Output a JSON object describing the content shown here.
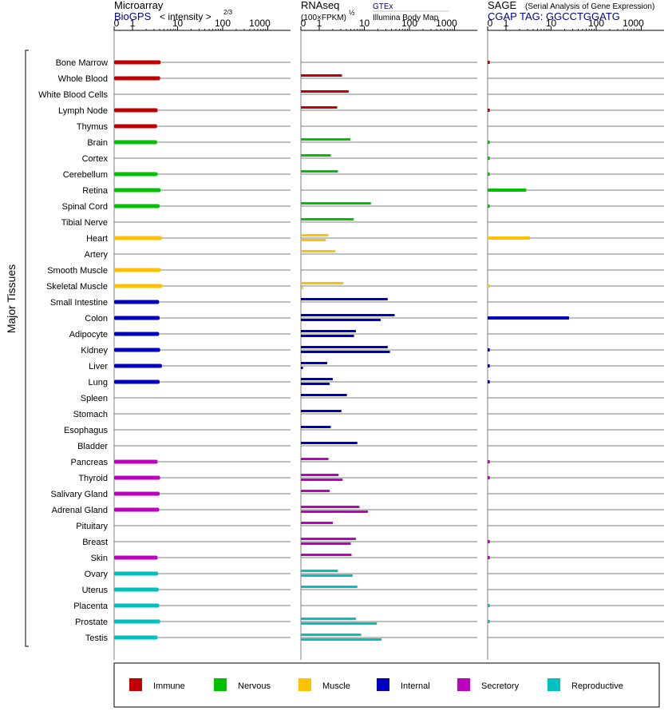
{
  "chart_data": [
    {
      "type": "bar",
      "panel": "Microarray",
      "title": "Microarray",
      "subtitle_source": "BioGPS",
      "subtitle_metric": "< intensity >",
      "metric_exponent": "2/3",
      "xscale": "symlog",
      "ticks": [
        "0",
        "1",
        "10",
        "100",
        "1000"
      ],
      "xlim": [
        0,
        1000
      ],
      "categories": [
        "Bone Marrow",
        "Whole Blood",
        "White Blood Cells",
        "Lymph Node",
        "Thymus",
        "Brain",
        "Cortex",
        "Cerebellum",
        "Retina",
        "Spinal Cord",
        "Tibial Nerve",
        "Heart",
        "Artery",
        "Smooth Muscle",
        "Skeletal Muscle",
        "Small Intestine",
        "Colon",
        "Adipocyte",
        "Kidney",
        "Liver",
        "Lung",
        "Spleen",
        "Stomach",
        "Esophagus",
        "Bladder",
        "Pancreas",
        "Thyroid",
        "Salivary Gland",
        "Adrenal Gland",
        "Pituitary",
        "Breast",
        "Skin",
        "Ovary",
        "Uterus",
        "Placenta",
        "Prostate",
        "Testis"
      ],
      "series": [
        {
          "values": [
            4.2,
            4.1,
            null,
            3.6,
            3.5,
            3.5,
            null,
            3.6,
            4.2,
            4.0,
            null,
            4.5,
            null,
            4.2,
            4.6,
            3.9,
            4.0,
            3.9,
            4.1,
            4.5,
            4.0,
            null,
            null,
            null,
            null,
            3.6,
            4.1,
            4.0,
            3.9,
            null,
            null,
            3.6,
            3.7,
            3.8,
            3.9,
            4.1,
            3.6
          ]
        }
      ]
    },
    {
      "type": "bar",
      "panel": "RNAseq",
      "title": "RNAseq",
      "subtitle_unit": "(100×FPKM)",
      "unit_exponent": "½",
      "source_top": "GTEx",
      "source_bottom": "Illumina Body Map",
      "xscale": "symlog",
      "ticks": [
        "0",
        "1",
        "10",
        "100",
        "1000"
      ],
      "xlim": [
        0,
        1000
      ],
      "categories": [
        "Bone Marrow",
        "Whole Blood",
        "White Blood Cells",
        "Lymph Node",
        "Thymus",
        "Brain",
        "Cortex",
        "Cerebellum",
        "Retina",
        "Spinal Cord",
        "Tibial Nerve",
        "Heart",
        "Artery",
        "Smooth Muscle",
        "Skeletal Muscle",
        "Small Intestine",
        "Colon",
        "Adipocyte",
        "Kidney",
        "Liver",
        "Lung",
        "Spleen",
        "Stomach",
        "Esophagus",
        "Bladder",
        "Pancreas",
        "Thyroid",
        "Salivary Gland",
        "Adrenal Gland",
        "Pituitary",
        "Breast",
        "Skin",
        "Ovary",
        "Uterus",
        "Placenta",
        "Prostate",
        "Testis"
      ],
      "series": [
        {
          "name": "GTEx",
          "values": [
            null,
            3.2,
            4.5,
            2.5,
            null,
            4.9,
            1.8,
            2.6,
            null,
            14,
            5.8,
            1.6,
            2.3,
            null,
            3.4,
            33,
            47,
            6.5,
            33,
            1.5,
            2.0,
            4.1,
            3.1,
            1.8,
            7.0,
            1.6,
            2.7,
            1.7,
            7.8,
            2.0,
            6.5,
            5.2,
            2.6,
            7.0,
            null,
            6.5,
            8.5
          ]
        },
        {
          "name": "Illumina Body Map",
          "values": [
            null,
            null,
            null,
            null,
            null,
            null,
            null,
            null,
            null,
            null,
            null,
            1.4,
            null,
            null,
            0.05,
            null,
            23,
            5.9,
            37,
            0.05,
            1.7,
            null,
            null,
            null,
            null,
            null,
            3.3,
            null,
            12,
            null,
            5.0,
            null,
            5.5,
            null,
            null,
            19,
            24
          ]
        }
      ]
    },
    {
      "type": "bar",
      "panel": "SAGE",
      "title": "SAGE",
      "subtitle_note": "(Serial Analysis of Gene Expression)",
      "tag_line": "CGAP TAG: GGCCTGGATG",
      "xscale": "symlog",
      "ticks": [
        "0",
        "1",
        "10",
        "100",
        "1000"
      ],
      "xlim": [
        0,
        1000
      ],
      "categories": [
        "Bone Marrow",
        "Whole Blood",
        "White Blood Cells",
        "Lymph Node",
        "Thymus",
        "Brain",
        "Cortex",
        "Cerebellum",
        "Retina",
        "Spinal Cord",
        "Tibial Nerve",
        "Heart",
        "Artery",
        "Smooth Muscle",
        "Skeletal Muscle",
        "Small Intestine",
        "Colon",
        "Adipocyte",
        "Kidney",
        "Liver",
        "Lung",
        "Spleen",
        "Stomach",
        "Esophagus",
        "Bladder",
        "Pancreas",
        "Thyroid",
        "Salivary Gland",
        "Adrenal Gland",
        "Pituitary",
        "Breast",
        "Skin",
        "Ovary",
        "Uterus",
        "Placenta",
        "Prostate",
        "Testis"
      ],
      "series": [
        {
          "values": [
            0.05,
            null,
            null,
            0.05,
            null,
            0.05,
            0.05,
            0.05,
            2.8,
            0.05,
            null,
            3.4,
            null,
            null,
            0.05,
            null,
            25,
            null,
            0.05,
            0.05,
            0.05,
            null,
            null,
            null,
            null,
            0.05,
            0.05,
            null,
            null,
            null,
            0.05,
            0.05,
            null,
            null,
            0.05,
            0.05,
            null
          ]
        }
      ]
    }
  ],
  "tissue_groups": [
    "Immune",
    "Immune",
    "Immune",
    "Immune",
    "Immune",
    "Nervous",
    "Nervous",
    "Nervous",
    "Nervous",
    "Nervous",
    "Nervous",
    "Muscle",
    "Muscle",
    "Muscle",
    "Muscle",
    "Internal",
    "Internal",
    "Internal",
    "Internal",
    "Internal",
    "Internal",
    "Internal",
    "Internal",
    "Internal",
    "Internal",
    "Secretory",
    "Secretory",
    "Secretory",
    "Secretory",
    "Secretory",
    "Secretory",
    "Secretory",
    "Reproductive",
    "Reproductive",
    "Reproductive",
    "Reproductive",
    "Reproductive"
  ],
  "group_label": "Major Tissues",
  "legend": [
    {
      "label": "Immune",
      "color": "#c00000"
    },
    {
      "label": "Nervous",
      "color": "#00c000"
    },
    {
      "label": "Muscle",
      "color": "#ffc000"
    },
    {
      "label": "Internal",
      "color": "#0000c0"
    },
    {
      "label": "Secretory",
      "color": "#c000c0"
    },
    {
      "label": "Reproductive",
      "color": "#00c0c0"
    }
  ],
  "colors": {
    "link_text": "#00008b",
    "row_line": "#808080",
    "axis": "#000000"
  }
}
